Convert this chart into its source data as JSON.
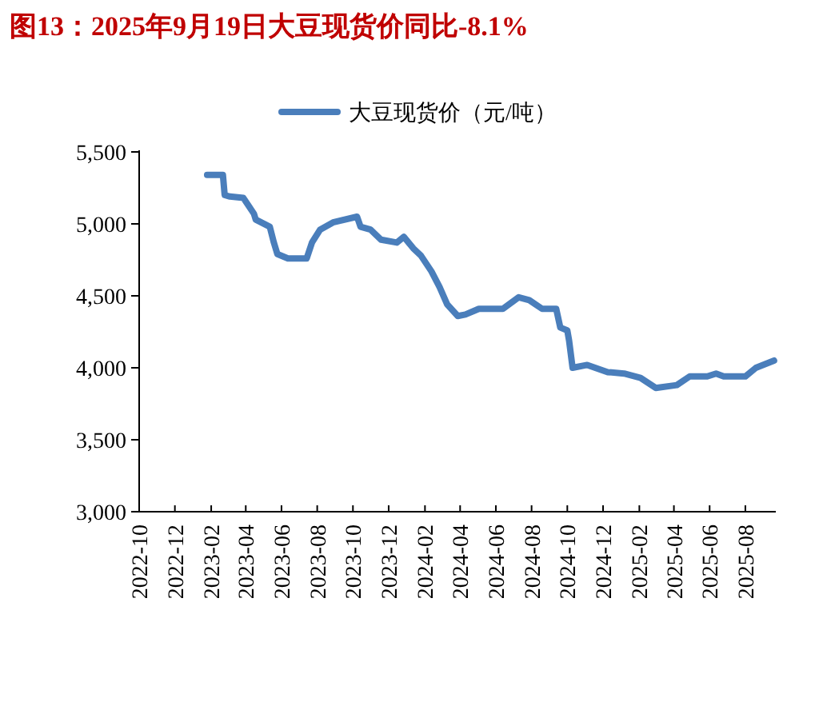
{
  "chart_data": {
    "type": "line",
    "title": "图13：2025年9月19日大豆现货价同比-8.1%",
    "x": [
      "2023-01-25",
      "2023-02-21",
      "2023-02-24",
      "2023-03-05",
      "2023-03-28",
      "2023-04-15",
      "2023-04-18",
      "2023-05-12",
      "2023-05-19",
      "2023-05-25",
      "2023-06-12",
      "2023-07-14",
      "2023-07-23",
      "2023-08-06",
      "2023-08-28",
      "2023-10-08",
      "2023-10-14",
      "2023-10-31",
      "2023-11-18",
      "2023-12-15",
      "2023-12-27",
      "2024-01-12",
      "2024-01-25",
      "2024-02-12",
      "2024-02-26",
      "2024-03-10",
      "2024-03-28",
      "2024-04-10",
      "2024-05-03",
      "2024-06-13",
      "2024-07-10",
      "2024-07-28",
      "2024-08-19",
      "2024-09-12",
      "2024-09-19",
      "2024-10-01",
      "2024-10-04",
      "2024-10-10",
      "2024-11-04",
      "2024-12-09",
      "2025-01-06",
      "2025-02-03",
      "2025-03-01",
      "2025-04-06",
      "2025-04-28",
      "2025-05-28",
      "2025-06-12",
      "2025-06-25",
      "2025-08-01",
      "2025-08-19",
      "2025-09-19"
    ],
    "series": [
      {
        "name": "大豆现货价（元/吨）",
        "color": "#4a7ebb",
        "values": [
          5340,
          5340,
          5200,
          5190,
          5180,
          5070,
          5030,
          4980,
          4870,
          4790,
          4760,
          4760,
          4870,
          4960,
          5010,
          5050,
          4980,
          4960,
          4890,
          4870,
          4910,
          4830,
          4780,
          4670,
          4560,
          4440,
          4360,
          4370,
          4410,
          4410,
          4490,
          4470,
          4410,
          4410,
          4280,
          4260,
          4190,
          4000,
          4020,
          3970,
          3960,
          3930,
          3860,
          3880,
          3940,
          3940,
          3960,
          3940,
          3940,
          4000,
          4050
        ]
      }
    ],
    "xlim": [
      "2022-10-01",
      "2025-09-22"
    ],
    "xticks": [
      "2022-10",
      "2022-12",
      "2023-02",
      "2023-04",
      "2023-06",
      "2023-08",
      "2023-10",
      "2023-12",
      "2024-02",
      "2024-04",
      "2024-06",
      "2024-08",
      "2024-10",
      "2024-12",
      "2025-02",
      "2025-04",
      "2025-06",
      "2025-08"
    ],
    "ylim": [
      3000,
      5500
    ],
    "yticks": [
      {
        "value": 3000,
        "label": "3,000"
      },
      {
        "value": 3500,
        "label": "3,500"
      },
      {
        "value": 4000,
        "label": "4,000"
      },
      {
        "value": 4500,
        "label": "4,500"
      },
      {
        "value": 5000,
        "label": "5,000"
      },
      {
        "value": 5500,
        "label": "5,500"
      }
    ],
    "legend": "top",
    "grid": false,
    "marker": "none",
    "line_style": "solid"
  }
}
